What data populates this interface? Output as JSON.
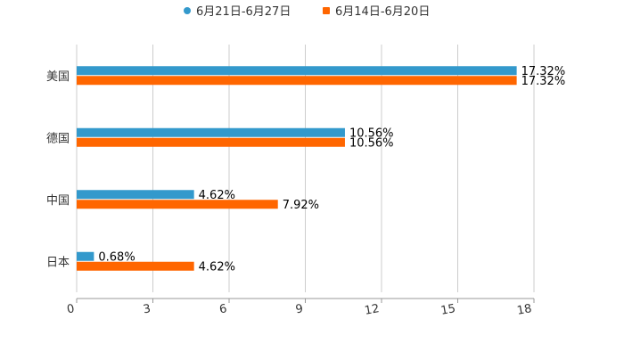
{
  "chart_data": {
    "type": "bar",
    "orientation": "horizontal",
    "categories": [
      "美国",
      "德国",
      "中国",
      "日本"
    ],
    "series": [
      {
        "name": "6月21日-6月27日",
        "color": "#3399cc",
        "values": [
          17.32,
          10.56,
          4.62,
          0.68
        ],
        "labels": [
          "17.32%",
          "10.56%",
          "4.62%",
          "0.68%"
        ]
      },
      {
        "name": "6月14日-6月20日",
        "color": "#ff6600",
        "values": [
          17.32,
          10.56,
          7.92,
          4.62
        ],
        "labels": [
          "17.32%",
          "10.56%",
          "7.92%",
          "4.62%"
        ]
      }
    ],
    "xlim": [
      0,
      18
    ],
    "xticks": [
      "0",
      "3",
      "6",
      "9",
      "12",
      "15",
      "18"
    ],
    "grid": true,
    "legend": "top-center",
    "title": "",
    "xlabel": "",
    "ylabel": ""
  }
}
